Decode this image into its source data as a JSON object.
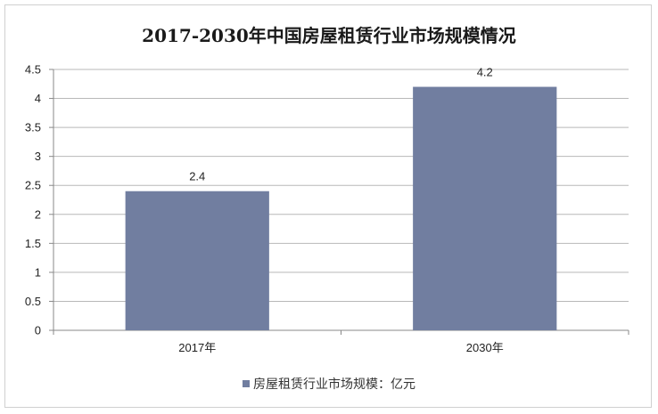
{
  "chart_data": {
    "type": "bar",
    "title": "2017-2030年中国房屋租赁行业市场规模情况",
    "categories": [
      "2017年",
      "2030年"
    ],
    "series": [
      {
        "name": "房屋租赁行业市场规模：亿元",
        "values": [
          2.4,
          4.2
        ]
      }
    ],
    "data_labels": [
      "2.4",
      "4.2"
    ],
    "yticks": [
      "0",
      "0.5",
      "1",
      "1.5",
      "2",
      "2.5",
      "3",
      "3.5",
      "4",
      "4.5"
    ],
    "ylim": [
      0,
      4.5
    ],
    "grid": true,
    "legend_position": "bottom",
    "bar_color": "#717ea0"
  }
}
